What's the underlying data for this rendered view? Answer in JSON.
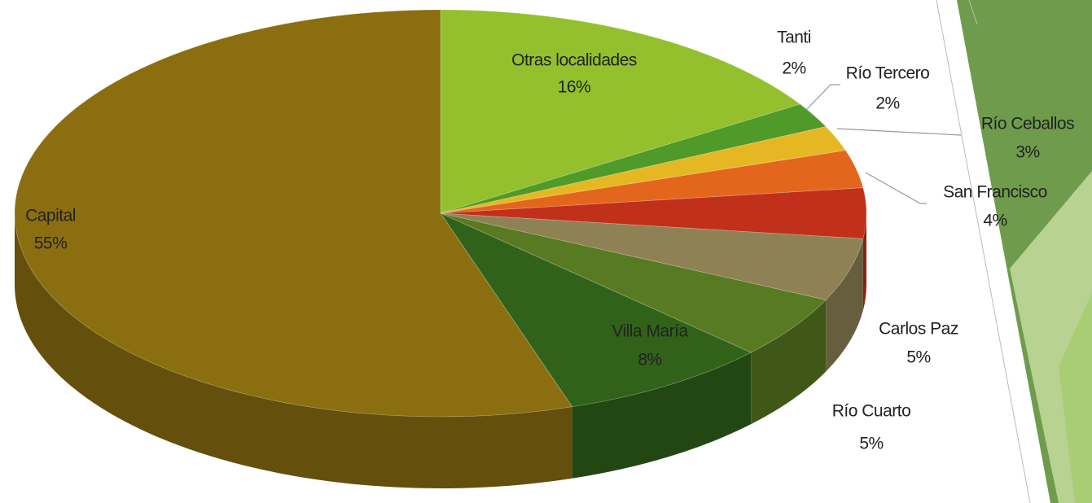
{
  "chart_data": {
    "type": "pie",
    "categories": [
      "Otras localidades",
      "Tanti",
      "Río Tercero",
      "Río Ceballos",
      "San Francisco",
      "Carlos Paz",
      "Río Cuarto",
      "Villa María",
      "Capital"
    ],
    "values": [
      16,
      2,
      2,
      3,
      4,
      5,
      5,
      8,
      55
    ],
    "value_labels": [
      "16%",
      "2%",
      "2%",
      "3%",
      "4%",
      "5%",
      "5%",
      "8%",
      "55%"
    ],
    "colors": [
      "#93c02c",
      "#4f9a28",
      "#e5b823",
      "#e3661c",
      "#c1301b",
      "#8e8254",
      "#587a22",
      "#31621a",
      "#8b6e10"
    ]
  }
}
